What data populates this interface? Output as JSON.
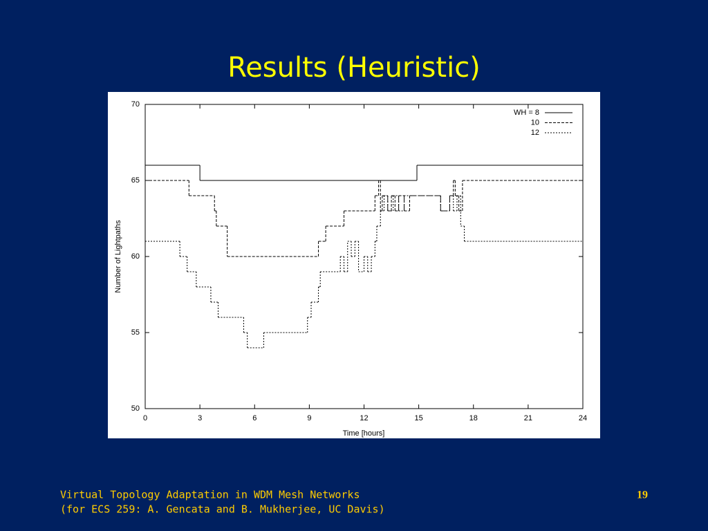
{
  "slide": {
    "title": "Results (Heuristic)",
    "footer": [
      "Virtual Topology Adaptation in WDM Mesh Networks",
      "(for ECS 259: A. Gencata and B. Mukherjee, UC Davis)"
    ],
    "page_number": 19
  },
  "chart_data": {
    "type": "step",
    "xlabel": "Time [hours]",
    "ylabel": "Number of Lightpaths",
    "xlim": [
      0,
      24
    ],
    "xticks": [
      0,
      3,
      6,
      9,
      12,
      15,
      18,
      21,
      24
    ],
    "ylim": [
      50,
      70
    ],
    "yticks": [
      50,
      55,
      60,
      65,
      70
    ],
    "grid": false,
    "legend": "top-right",
    "series": [
      {
        "name": "WH = 8",
        "color": "#000000",
        "style": "solid",
        "x": [
          0,
          3,
          14.9,
          24
        ],
        "values": [
          66,
          65,
          66,
          66
        ]
      },
      {
        "name": "10",
        "color": "#000000",
        "style": "dashed",
        "x": [
          0,
          2.4,
          3.8,
          3.9,
          4.5,
          9.5,
          9.9,
          10.9,
          12.6,
          12.8,
          12.9,
          13.0,
          13.3,
          13.5,
          13.7,
          13.9,
          14.2,
          14.5,
          16.2,
          16.7,
          16.9,
          17.0,
          17.2,
          17.4,
          24
        ],
        "values": [
          65,
          64,
          63,
          62,
          60,
          61,
          62,
          63,
          64,
          65,
          63,
          64,
          63,
          64,
          63,
          64,
          63,
          64,
          63,
          64,
          65,
          64,
          63,
          65,
          65
        ]
      },
      {
        "name": "12",
        "color": "#000000",
        "style": "dotted",
        "x": [
          0,
          1.9,
          2.3,
          2.8,
          3.6,
          4.0,
          5.4,
          5.6,
          6.5,
          8.9,
          9.1,
          9.5,
          9.6,
          10.7,
          10.9,
          11.1,
          11.3,
          11.5,
          11.7,
          12.0,
          12.2,
          12.4,
          12.6,
          12.7,
          12.9,
          13.1,
          13.3,
          13.6,
          13.9,
          14.2,
          14.5,
          16.2,
          16.7,
          16.9,
          17.1,
          17.3,
          17.5,
          24
        ],
        "values": [
          61,
          60,
          59,
          58,
          57,
          56,
          55,
          54,
          55,
          56,
          57,
          58,
          59,
          60,
          59,
          61,
          60,
          61,
          59,
          60,
          59,
          60,
          61,
          62,
          63,
          64,
          63,
          64,
          63,
          64,
          64,
          63,
          64,
          63,
          64,
          62,
          61,
          61
        ]
      }
    ]
  }
}
